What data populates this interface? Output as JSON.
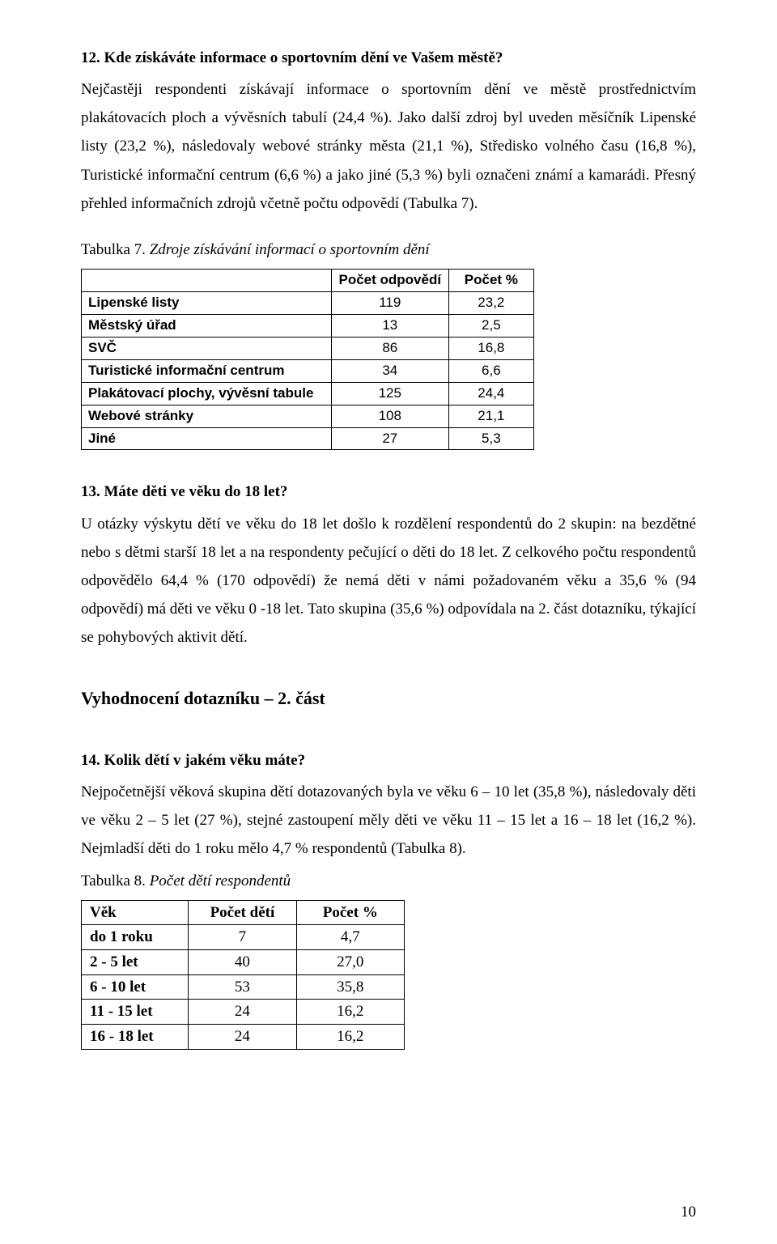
{
  "q12": {
    "title": "12. Kde získáváte informace o sportovním dění ve Vašem městě?",
    "para1": "Nejčastěji respondenti získávají informace o sportovním dění ve městě prostřednictvím plakátovacích ploch a vývěsních tabulí (24,4 %). Jako další zdroj byl uveden měsíčník Lipenské listy (23,2 %), následovaly webové stránky města (21,1 %), Středisko volného času (16,8 %), Turistické informační centrum (6,6 %) a jako jiné (5,3 %) byli označeni známí a kamarádi. Přesný přehled informačních zdrojů včetně počtu odpovědí (Tabulka 7)."
  },
  "table7": {
    "caption_prefix": "Tabulka 7. ",
    "caption_italic": "Zdroje získávání informací o sportovním dění",
    "headers": [
      "",
      "Počet odpovědí",
      "Počet  %"
    ],
    "rows": [
      {
        "label": "Lipenské listy",
        "count": "119",
        "pct": "23,2"
      },
      {
        "label": "Městský úřad",
        "count": "13",
        "pct": "2,5"
      },
      {
        "label": "SVČ",
        "count": "86",
        "pct": "16,8"
      },
      {
        "label": "Turistické informační centrum",
        "count": "34",
        "pct": "6,6"
      },
      {
        "label": "Plakátovací plochy, vývěsní tabule",
        "count": "125",
        "pct": "24,4"
      },
      {
        "label": "Webové stránky",
        "count": "108",
        "pct": "21,1"
      },
      {
        "label": "Jiné",
        "count": "27",
        "pct": "5,3"
      }
    ]
  },
  "q13": {
    "title": "13. Máte děti ve věku do 18 let?",
    "para1": "U otázky výskytu dětí ve věku do 18 let došlo k rozdělení respondentů do 2 skupin: na bezdětné nebo s dětmi starší 18 let a na respondenty pečující o děti do 18 let. Z celkového počtu respondentů odpovědělo 64,4 % (170 odpovědí) že nemá děti v námi požadovaném věku a 35,6 % (94 odpovědí) má děti ve věku 0 -18 let. Tato skupina (35,6 %) odpovídala na 2. část dotazníku, týkající se pohybových aktivit dětí."
  },
  "section2": {
    "title": "Vyhodnocení dotazníku – 2. část"
  },
  "q14": {
    "title": "14. Kolik dětí v jakém věku máte?",
    "para1": "Nejpočetnější věková skupina dětí dotazovaných byla ve věku 6 – 10 let (35,8 %), následovaly děti ve věku 2 – 5 let (27 %), stejné zastoupení měly děti ve věku 11 – 15 let a 16 – 18 let (16,2 %). Nejmladší děti do 1 roku mělo 4,7 % respondentů (Tabulka 8)."
  },
  "table8": {
    "caption_prefix": "Tabulka 8. ",
    "caption_italic": "Počet dětí respondentů",
    "headers": [
      "Věk",
      "Počet dětí",
      "Počet  %"
    ],
    "rows": [
      {
        "label": "do 1 roku",
        "count": "7",
        "pct": "4,7"
      },
      {
        "label": "2 - 5 let",
        "count": "40",
        "pct": "27,0"
      },
      {
        "label": "6 - 10 let",
        "count": "53",
        "pct": "35,8"
      },
      {
        "label": "11 - 15 let",
        "count": "24",
        "pct": "16,2"
      },
      {
        "label": "16 - 18 let",
        "count": "24",
        "pct": "16,2"
      }
    ]
  },
  "pageNumber": "10"
}
